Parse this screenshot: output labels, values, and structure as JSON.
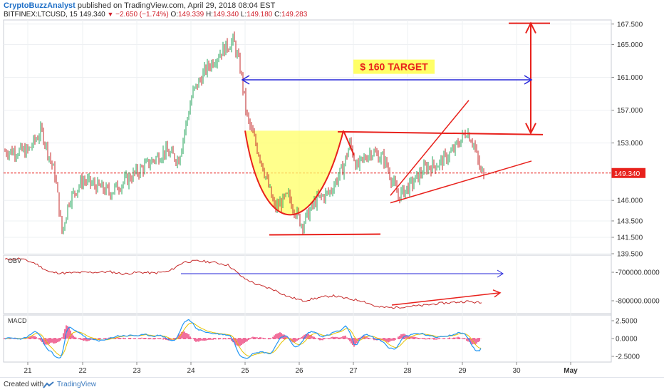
{
  "header": {
    "author": "CryptoBuzzAnalyst",
    "published_text": "published on TradingView.com, April 29, 2018 08:04 EST",
    "symbol": "BITFINEX:LTCUSD, 15",
    "last": "149.340",
    "change": "−2.650 (−1.74%)",
    "ohlc_prefix_o": "O:",
    "open": "149.339",
    "ohlc_prefix_h": "H:",
    "high": "149.340",
    "ohlc_prefix_l": "L:",
    "low": "149.180",
    "ohlc_prefix_c": "C:",
    "close": "149.283"
  },
  "footer": {
    "created_with": "Created with",
    "brand": "TradingView"
  },
  "colors": {
    "up": "#26a65b",
    "down": "#c62828",
    "annotation_red": "#e8211c",
    "annotation_blue": "#2626d9",
    "highlight_yellow": "#ffff66",
    "price_tag": "#e8211c"
  },
  "chart_data": [
    {
      "type": "candlestick",
      "name": "price",
      "title": "BITFINEX:LTCUSD, 15",
      "x_tick_labels": [
        "21",
        "22",
        "23",
        "24",
        "25",
        "26",
        "27",
        "28",
        "29",
        "30",
        "May"
      ],
      "y_tick_labels": [
        "167.500",
        "165.000",
        "161.000",
        "157.000",
        "153.000",
        "149.340",
        "146.000",
        "143.500",
        "141.500",
        "139.500"
      ],
      "ylim": [
        139.5,
        168
      ],
      "last_price_label": "149.340",
      "approx_close_path": [
        {
          "x": "Apr 21 00:00",
          "y": 152.0
        },
        {
          "x": "Apr 21 06:00",
          "y": 154.5
        },
        {
          "x": "Apr 21 12:00",
          "y": 149.0
        },
        {
          "x": "Apr 21 15:00",
          "y": 142.0
        },
        {
          "x": "Apr 21 18:00",
          "y": 146.0
        },
        {
          "x": "Apr 22 00:00",
          "y": 148.5
        },
        {
          "x": "Apr 22 12:00",
          "y": 147.0
        },
        {
          "x": "Apr 23 00:00",
          "y": 149.5
        },
        {
          "x": "Apr 23 12:00",
          "y": 152.0
        },
        {
          "x": "Apr 23 18:00",
          "y": 151.0
        },
        {
          "x": "Apr 24 00:00",
          "y": 159.0
        },
        {
          "x": "Apr 24 06:00",
          "y": 162.0
        },
        {
          "x": "Apr 24 12:00",
          "y": 164.0
        },
        {
          "x": "Apr 24 18:00",
          "y": 165.5
        },
        {
          "x": "Apr 24 21:00",
          "y": 162.0
        },
        {
          "x": "Apr 25 00:00",
          "y": 156.0
        },
        {
          "x": "Apr 25 06:00",
          "y": 151.0
        },
        {
          "x": "Apr 25 12:00",
          "y": 145.0
        },
        {
          "x": "Apr 25 18:00",
          "y": 146.5
        },
        {
          "x": "Apr 26 00:00",
          "y": 143.0
        },
        {
          "x": "Apr 26 06:00",
          "y": 146.0
        },
        {
          "x": "Apr 26 12:00",
          "y": 147.0
        },
        {
          "x": "Apr 26 18:00",
          "y": 150.0
        },
        {
          "x": "Apr 26 21:00",
          "y": 153.0
        },
        {
          "x": "Apr 27 00:00",
          "y": 150.0
        },
        {
          "x": "Apr 27 06:00",
          "y": 152.0
        },
        {
          "x": "Apr 27 12:00",
          "y": 151.0
        },
        {
          "x": "Apr 27 18:00",
          "y": 146.5
        },
        {
          "x": "Apr 28 00:00",
          "y": 148.0
        },
        {
          "x": "Apr 28 06:00",
          "y": 150.0
        },
        {
          "x": "Apr 28 12:00",
          "y": 150.5
        },
        {
          "x": "Apr 28 18:00",
          "y": 152.0
        },
        {
          "x": "Apr 29 00:00",
          "y": 154.5
        },
        {
          "x": "Apr 29 03:00",
          "y": 153.0
        },
        {
          "x": "Apr 29 06:00",
          "y": 149.5
        },
        {
          "x": "Apr 29 08:00",
          "y": 149.34
        }
      ],
      "annotations": [
        {
          "kind": "label",
          "text": "$ 160 TARGET"
        },
        {
          "kind": "cup",
          "fill": "yellow",
          "from": "Apr 25",
          "to": "Apr 26 21:00",
          "rim": 154.5,
          "bottom": 141.7
        },
        {
          "kind": "neckline",
          "y": 154.2
        },
        {
          "kind": "support_line",
          "y": 141.8
        },
        {
          "kind": "target_arrow",
          "from": 154.2,
          "to": 167.6
        }
      ]
    },
    {
      "type": "line",
      "name": "OBV",
      "title": "OBV",
      "y_tick_labels": [
        "-700000.0000",
        "-800000.0000"
      ],
      "ylim": [
        -845000,
        -640000
      ],
      "values": [
        -655000,
        -652000,
        -668000,
        -700000,
        -703000,
        -701000,
        -700000,
        -698000,
        -706000,
        -700000,
        -703000,
        -697000,
        -664000,
        -660000,
        -665000,
        -675000,
        -720000,
        -745000,
        -760000,
        -785000,
        -800000,
        -790000,
        -782000,
        -793000,
        -800000,
        -822000,
        -824000,
        -820000,
        -817000,
        -810000,
        -806000,
        -802000,
        -808000
      ],
      "annotations": [
        {
          "kind": "arrow",
          "color": "blue",
          "text": ""
        },
        {
          "kind": "arrow",
          "color": "red",
          "text": ""
        }
      ]
    },
    {
      "type": "macd",
      "name": "MACD",
      "title": "MACD",
      "y_tick_labels": [
        "2.5000",
        "0.0000",
        "-2.5000"
      ],
      "ylim": [
        -3.3,
        3.3
      ]
    }
  ]
}
